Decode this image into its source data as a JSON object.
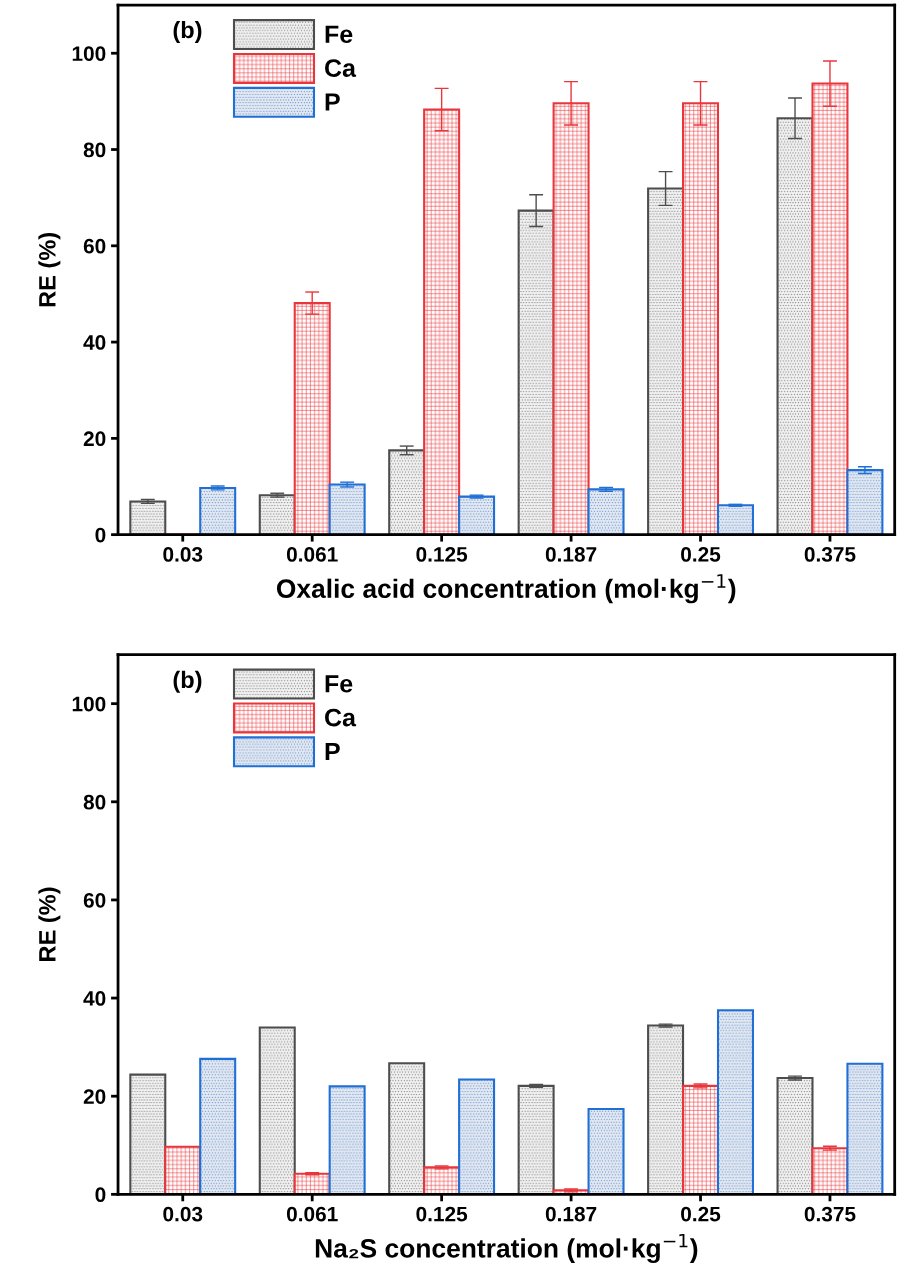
{
  "chart_data": [
    {
      "type": "bar",
      "annotations": [
        "(b)"
      ],
      "xlabel": "Oxalic acid concentration (mol·kg$^{−1}$)",
      "ylabel": "RE (%)",
      "categories": [
        "0.03",
        "0.061",
        "0.125",
        "0.187",
        "0.25",
        "0.375"
      ],
      "series": [
        {
          "name": "Fe",
          "color": "#4d4d4d",
          "values": [
            6.9,
            8.2,
            17.5,
            67.3,
            71.9,
            86.5
          ],
          "errors": [
            0.4,
            0.4,
            0.9,
            3.3,
            3.5,
            4.2
          ]
        },
        {
          "name": "Ca",
          "color": "#e8363c",
          "values": [
            0,
            48.1,
            88.3,
            89.6,
            89.6,
            93.7
          ],
          "errors": [
            null,
            2.3,
            4.4,
            4.5,
            4.5,
            4.7
          ]
        },
        {
          "name": "P",
          "color": "#1f6fd6",
          "values": [
            9.7,
            10.4,
            7.9,
            9.4,
            6.1,
            13.4
          ],
          "errors": [
            0.4,
            0.5,
            0.3,
            0.4,
            0.2,
            0.7
          ]
        }
      ],
      "ylim": [
        0,
        110
      ],
      "yticks": [
        0,
        20,
        40,
        60,
        80,
        100
      ],
      "legend": "top left",
      "grid": false
    },
    {
      "type": "bar",
      "annotations": [
        "(b)"
      ],
      "xlabel": "Na₂S concentration (mol·kg$^{−1}$)",
      "ylabel": "RE (%)",
      "categories": [
        "0.03",
        "0.061",
        "0.125",
        "0.187",
        "0.25",
        "0.375"
      ],
      "series": [
        {
          "name": "Fe",
          "color": "#4d4d4d",
          "values": [
            24.4,
            34.0,
            26.7,
            22.1,
            34.4,
            23.7
          ],
          "errors": [
            null,
            null,
            null,
            0.3,
            0.3,
            0.4
          ]
        },
        {
          "name": "Ca",
          "color": "#e8363c",
          "values": [
            9.7,
            4.2,
            5.5,
            0.8,
            22.1,
            9.4
          ],
          "errors": [
            null,
            0.2,
            0.3,
            0.3,
            0.4,
            0.4
          ]
        },
        {
          "name": "P",
          "color": "#1f6fd6",
          "values": [
            27.6,
            22.0,
            23.4,
            17.4,
            37.5,
            26.6
          ],
          "errors": [
            null,
            null,
            null,
            null,
            null,
            null
          ]
        }
      ],
      "ylim": [
        0,
        110
      ],
      "yticks": [
        0,
        20,
        40,
        60,
        80,
        100
      ],
      "legend": "top left",
      "grid": false
    }
  ]
}
